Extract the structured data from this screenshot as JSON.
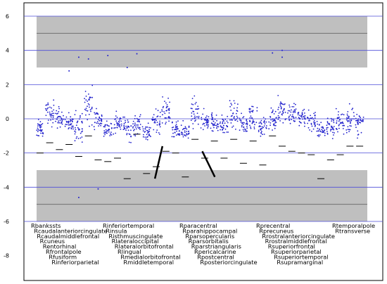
{
  "chart_data": {
    "type": "scatter",
    "title": "",
    "xlabel": "",
    "ylabel": "",
    "ylim": [
      -8.5,
      6.5
    ],
    "y_ticks": [
      6,
      4,
      2,
      0,
      -2,
      -4,
      -6,
      -8
    ],
    "horizontal_gridlines": [
      6,
      4,
      2,
      0,
      -2,
      -4,
      -6
    ],
    "grid": true,
    "shaded_bands": [
      {
        "from": 3.0,
        "to": 6.0,
        "line": 5.0,
        "color": "#bfbfbf"
      },
      {
        "from": -6.0,
        "to": -3.0,
        "line": -5.0,
        "color": "#bfbfbf"
      }
    ],
    "points_per_region": 34,
    "marker_color": "#1f1fcc",
    "threshold_color": "#000000",
    "callout_lines": [
      {
        "x1": 0.386,
        "y1": -1.6,
        "x2": 0.365,
        "y2": -3.5
      },
      {
        "x1": 0.497,
        "y1": -1.9,
        "x2": 0.532,
        "y2": -3.4
      }
    ],
    "regions": [
      {
        "name": "Rbankssts",
        "mean": -0.6,
        "spread": 0.35,
        "threshold": -2.0
      },
      {
        "name": "Rcaudalanteriorcingulate",
        "mean": 0.3,
        "spread": 0.5,
        "threshold": -1.4
      },
      {
        "name": "Rcaudalmiddlefrontal",
        "mean": 0.1,
        "spread": 0.4,
        "threshold": -1.8
      },
      {
        "name": "Rcuneus",
        "mean": -0.3,
        "spread": 0.4,
        "threshold": -1.5
      },
      {
        "name": "Rentorhinal",
        "mean": -0.4,
        "spread": 0.6,
        "threshold": -2.2
      },
      {
        "name": "Rfrontalpole",
        "mean": 0.8,
        "spread": 0.8,
        "threshold": -1.0
      },
      {
        "name": "Rfusiform",
        "mean": 0.0,
        "spread": 0.4,
        "threshold": -2.4
      },
      {
        "name": "Rinferiorparietal",
        "mean": -0.6,
        "spread": 0.4,
        "threshold": -2.5
      },
      {
        "name": "Rinferiortemporal",
        "mean": -0.3,
        "spread": 0.4,
        "threshold": -2.3
      },
      {
        "name": "Rinsula",
        "mean": -0.5,
        "spread": 0.5,
        "threshold": -3.5
      },
      {
        "name": "Risthmuscingulate",
        "mean": -0.4,
        "spread": 0.5,
        "threshold": -0.9
      },
      {
        "name": "Rlateraloccipital",
        "mean": -0.7,
        "spread": 0.35,
        "threshold": -3.2
      },
      {
        "name": "Rlateralorbitofrontal",
        "mean": -0.2,
        "spread": 0.5,
        "threshold": -2.8
      },
      {
        "name": "Rlingual",
        "mean": 0.4,
        "spread": 0.6,
        "threshold": -1.9
      },
      {
        "name": "Rmedialorbitofrontal",
        "mean": -0.7,
        "spread": 0.35,
        "threshold": -2.0
      },
      {
        "name": "Rmiddletemporal",
        "mean": -0.8,
        "spread": 0.4,
        "threshold": -3.4
      },
      {
        "name": "Rparacentral",
        "mean": 0.3,
        "spread": 0.6,
        "threshold": -1.2
      },
      {
        "name": "Rparahippocampal",
        "mean": -0.1,
        "spread": 0.4,
        "threshold": -2.3
      },
      {
        "name": "Rparsopercularis",
        "mean": -0.2,
        "spread": 0.4,
        "threshold": -1.3
      },
      {
        "name": "Rparsorbitalis",
        "mean": -0.4,
        "spread": 0.4,
        "threshold": -2.3
      },
      {
        "name": "Rparstriangularis",
        "mean": 0.2,
        "spread": 0.5,
        "threshold": -1.2
      },
      {
        "name": "Rpericalcarine",
        "mean": -0.3,
        "spread": 0.4,
        "threshold": -2.6
      },
      {
        "name": "Rpostcentral",
        "mean": 0.1,
        "spread": 0.5,
        "threshold": -1.3
      },
      {
        "name": "Rposteriorcingulate",
        "mean": -0.5,
        "spread": 0.4,
        "threshold": -2.7
      },
      {
        "name": "Rprecentral",
        "mean": 0.0,
        "spread": 0.4,
        "threshold": -1.0
      },
      {
        "name": "Rprecuneus",
        "mean": 0.6,
        "spread": 0.6,
        "threshold": -1.6
      },
      {
        "name": "Rrostralanteriorcingulate",
        "mean": 0.3,
        "spread": 0.5,
        "threshold": -1.9
      },
      {
        "name": "Rrostralmiddlefrontal",
        "mean": 0.1,
        "spread": 0.45,
        "threshold": -2.0
      },
      {
        "name": "Rsuperiorfrontal",
        "mean": -0.1,
        "spread": 0.45,
        "threshold": -2.1
      },
      {
        "name": "Rsuperiorparietal",
        "mean": -0.6,
        "spread": 0.4,
        "threshold": -3.5
      },
      {
        "name": "Rsuperiortemporal",
        "mean": -0.5,
        "spread": 0.45,
        "threshold": -2.4
      },
      {
        "name": "Rsupramarginal",
        "mean": -0.2,
        "spread": 0.5,
        "threshold": -2.1
      },
      {
        "name": "Rtemporalpole",
        "mean": 0.0,
        "spread": 0.6,
        "threshold": -1.6
      },
      {
        "name": "Rtransverse",
        "mean": -0.3,
        "spread": 0.45,
        "threshold": -1.6
      }
    ],
    "outliers": [
      {
        "region": "Rcuneus",
        "y": 2.8
      },
      {
        "region": "Rentorhinal",
        "y": 3.6
      },
      {
        "region": "Rfrontalpole",
        "y": 3.5
      },
      {
        "region": "Rinferiorparietal",
        "y": 3.7
      },
      {
        "region": "Rinsula",
        "y": 3.0
      },
      {
        "region": "Risthmuscingulate",
        "y": 3.8
      },
      {
        "region": "Rprecentral",
        "y": 3.85
      },
      {
        "region": "Rprecuneus",
        "y": 3.6
      },
      {
        "region": "Rprecuneus",
        "y": 4.0
      },
      {
        "region": "Rfusiform",
        "y": -4.1
      },
      {
        "region": "Rentorhinal",
        "y": -4.6
      }
    ]
  }
}
